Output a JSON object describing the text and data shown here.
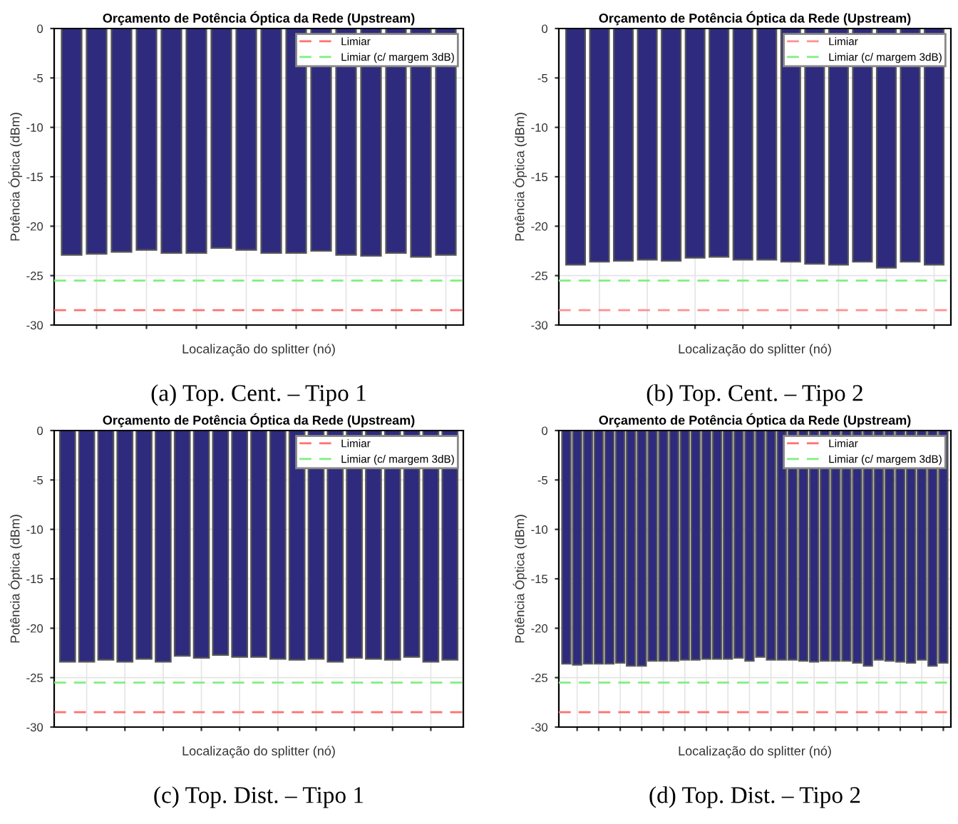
{
  "chart_data": [
    {
      "type": "bar",
      "title": "Orçamento de Potência Óptica da Rede (Upstream)",
      "xlabel": "Localização do splitter (nó)",
      "ylabel": "Potência Óptica (dBm)",
      "annotations": [
        "(a) Top. Cent. – Tipo 1"
      ],
      "categories": [
        null,
        null,
        null,
        null,
        null,
        null,
        null,
        null,
        null,
        null,
        null,
        null,
        null,
        null,
        null,
        null
      ],
      "values": [
        -22.9,
        -22.8,
        -22.6,
        -22.4,
        -22.7,
        -22.7,
        -22.2,
        -22.4,
        -22.7,
        -22.7,
        -22.5,
        -22.9,
        -23.0,
        -22.7,
        -23.1,
        -22.9
      ],
      "color": "#2e2a7e",
      "ylim": [
        -30,
        0
      ],
      "yticks": [
        -30,
        -25,
        -20,
        -15,
        -10,
        -5,
        0
      ],
      "grid": true,
      "legend": "top right",
      "ref_lines": [
        {
          "axis": "y",
          "value": -28.5,
          "label": "Limiar",
          "color": "#ff7070",
          "line_style": "dashed"
        },
        {
          "axis": "y",
          "value": -25.5,
          "label": "Limiar (c/ margem 3dB)",
          "color": "#80ee80",
          "line_style": "dashed"
        }
      ]
    },
    {
      "type": "bar",
      "title": "Orçamento de Potência Óptica da Rede (Upstream)",
      "xlabel": "Localização do splitter (nó)",
      "ylabel": "Potência Óptica (dBm)",
      "annotations": [
        "(b) Top. Cent. – Tipo 2"
      ],
      "categories": [
        null,
        null,
        null,
        null,
        null,
        null,
        null,
        null,
        null,
        null,
        null,
        null,
        null,
        null,
        null,
        null
      ],
      "values": [
        -23.9,
        -23.6,
        -23.5,
        -23.4,
        -23.5,
        -23.2,
        -23.1,
        -23.4,
        -23.4,
        -23.6,
        -23.8,
        -23.9,
        -23.6,
        -24.2,
        -23.6,
        -23.9
      ],
      "color": "#2e2a7e",
      "ylim": [
        -30,
        0
      ],
      "yticks": [
        -30,
        -25,
        -20,
        -15,
        -10,
        -5,
        0
      ],
      "grid": true,
      "legend": "top right",
      "ref_lines": [
        {
          "axis": "y",
          "value": -28.5,
          "label": "Limiar",
          "color": "#ff9090",
          "line_style": "dashed"
        },
        {
          "axis": "y",
          "value": -25.5,
          "label": "Limiar (c/ margem 3dB)",
          "color": "#80ee80",
          "line_style": "dashed"
        }
      ]
    },
    {
      "type": "bar",
      "title": "Orçamento de Potência Óptica da Rede (Upstream)",
      "xlabel": "Localização do splitter (nó)",
      "ylabel": "Potência Óptica (dBm)",
      "annotations": [
        "(c) Top. Dist. – Tipo 1"
      ],
      "categories": [
        null,
        null,
        null,
        null,
        null,
        null,
        null,
        null,
        null,
        null,
        null,
        null,
        null,
        null,
        null,
        null,
        null,
        null,
        null,
        null,
        null
      ],
      "values": [
        -23.4,
        -23.4,
        -23.2,
        -23.4,
        -23.1,
        -23.4,
        -22.8,
        -23.0,
        -22.7,
        -22.9,
        -22.9,
        -23.1,
        -23.2,
        -23.1,
        -23.4,
        -23.0,
        -23.1,
        -23.2,
        -22.9,
        -23.4,
        -23.2
      ],
      "color": "#2e2a7e",
      "ylim": [
        -30,
        0
      ],
      "yticks": [
        -30,
        -25,
        -20,
        -15,
        -10,
        -5,
        0
      ],
      "grid": true,
      "legend": "top right",
      "ref_lines": [
        {
          "axis": "y",
          "value": -28.5,
          "label": "Limiar",
          "color": "#ff7070",
          "line_style": "dashed"
        },
        {
          "axis": "y",
          "value": -25.5,
          "label": "Limiar (c/ margem 3dB)",
          "color": "#80ee80",
          "line_style": "dashed"
        }
      ]
    },
    {
      "type": "bar",
      "title": "Orçamento de Potência Óptica da Rede (Upstream)",
      "xlabel": "Localização do splitter (nó)",
      "ylabel": "Potência Óptica (dBm)",
      "annotations": [
        "(d) Top. Dist. – Tipo 2"
      ],
      "categories": [
        null,
        null,
        null,
        null,
        null,
        null,
        null,
        null,
        null,
        null,
        null,
        null,
        null,
        null,
        null,
        null,
        null,
        null,
        null,
        null,
        null,
        null,
        null,
        null,
        null,
        null,
        null,
        null,
        null,
        null,
        null,
        null,
        null,
        null,
        null,
        null
      ],
      "values": [
        -23.6,
        -23.7,
        -23.6,
        -23.6,
        -23.6,
        -23.5,
        -23.8,
        -23.8,
        -23.3,
        -23.3,
        -23.3,
        -23.2,
        -23.2,
        -23.1,
        -23.1,
        -23.1,
        -23.0,
        -23.3,
        -22.9,
        -23.2,
        -23.2,
        -23.2,
        -23.3,
        -23.4,
        -23.3,
        -23.3,
        -23.3,
        -23.5,
        -23.8,
        -23.2,
        -23.3,
        -23.4,
        -23.5,
        -23.2,
        -23.8,
        -23.5
      ],
      "color": "#2e2a7e",
      "ylim": [
        -30,
        0
      ],
      "yticks": [
        -30,
        -25,
        -20,
        -15,
        -10,
        -5,
        0
      ],
      "grid": true,
      "legend": "top right",
      "ref_lines": [
        {
          "axis": "y",
          "value": -28.5,
          "label": "Limiar",
          "color": "#ff7070",
          "line_style": "dashed"
        },
        {
          "axis": "y",
          "value": -25.5,
          "label": "Limiar (c/ margem 3dB)",
          "color": "#80ee80",
          "line_style": "dashed"
        }
      ]
    }
  ]
}
